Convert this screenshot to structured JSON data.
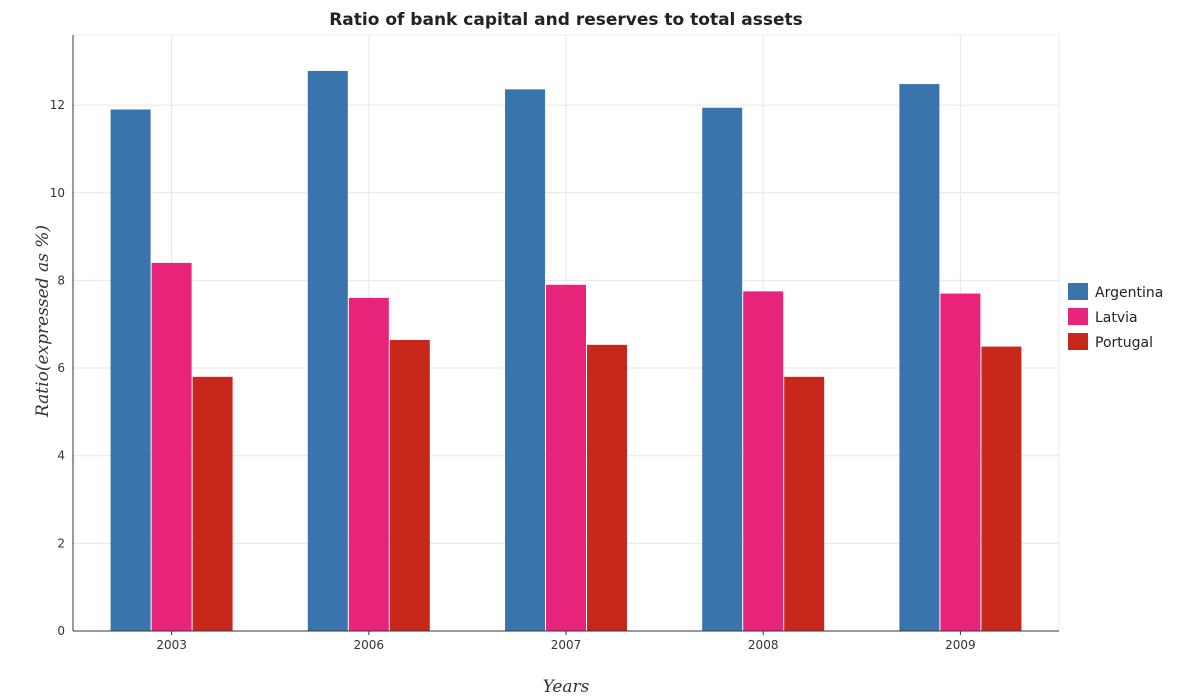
{
  "chart_data": {
    "type": "bar",
    "title": "Ratio of bank capital and reserves to total assets",
    "xlabel": "Years",
    "ylabel": "Ratio(expressed as %)",
    "categories": [
      "2003",
      "2006",
      "2007",
      "2008",
      "2009"
    ],
    "series": [
      {
        "name": "Argentina",
        "color": "#3a74ad",
        "values": [
          11.9,
          12.78,
          12.36,
          11.94,
          12.48
        ]
      },
      {
        "name": "Latvia",
        "color": "#e8247a",
        "values": [
          8.4,
          7.6,
          7.9,
          7.75,
          7.7
        ]
      },
      {
        "name": "Portugal",
        "color": "#c8281c",
        "values": [
          5.8,
          6.64,
          6.53,
          5.8,
          6.49
        ]
      }
    ],
    "ylim": [
      0,
      13.6
    ],
    "yticks": [
      0,
      2,
      4,
      6,
      8,
      10,
      12
    ],
    "grid": true,
    "legend_position": "right"
  }
}
